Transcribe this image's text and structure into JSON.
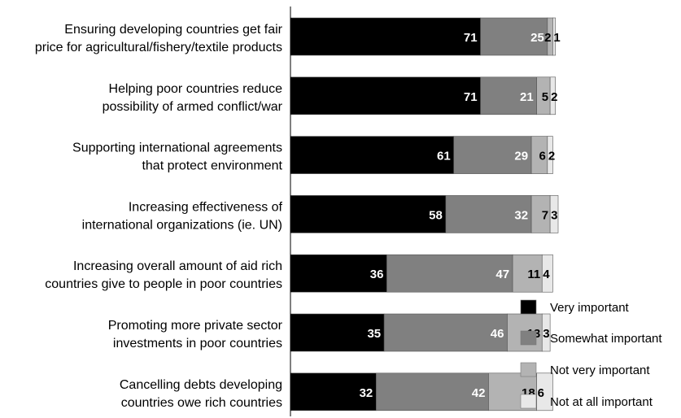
{
  "chart_data": {
    "type": "bar",
    "orientation": "horizontal",
    "stacked": true,
    "title": "",
    "xlabel": "",
    "ylabel": "",
    "xlim": [
      0,
      100
    ],
    "grid": false,
    "legend_position": "bottom-right",
    "categories": [
      [
        "Ensuring developing countries get fair",
        "price for agricultural/fishery/textile products"
      ],
      [
        "Helping poor countries reduce",
        "possibility of armed conflict/war"
      ],
      [
        "Supporting international agreements",
        "that protect environment"
      ],
      [
        "Increasing effectiveness of",
        "international organizations (ie. UN)"
      ],
      [
        "Increasing overall amount of aid rich",
        "countries give to people in poor countries"
      ],
      [
        "Promoting more private sector",
        "investments in poor countries"
      ],
      [
        "Cancelling debts developing",
        "countries owe rich countries"
      ]
    ],
    "series": [
      {
        "name": "Very important",
        "color": "#000000",
        "label_color": "#ffffff",
        "values": [
          71,
          71,
          61,
          58,
          36,
          35,
          32
        ]
      },
      {
        "name": "Somewhat important",
        "color": "#808080",
        "label_color": "#ffffff",
        "values": [
          25,
          21,
          29,
          32,
          47,
          46,
          42
        ]
      },
      {
        "name": "Not very important",
        "color": "#b3b3b3",
        "label_color": "#000000",
        "values": [
          2,
          5,
          6,
          7,
          11,
          13,
          18
        ]
      },
      {
        "name": "Not at all important",
        "color": "#e8e8e8",
        "label_color": "#000000",
        "values": [
          1,
          2,
          2,
          3,
          4,
          3,
          6
        ]
      }
    ]
  }
}
